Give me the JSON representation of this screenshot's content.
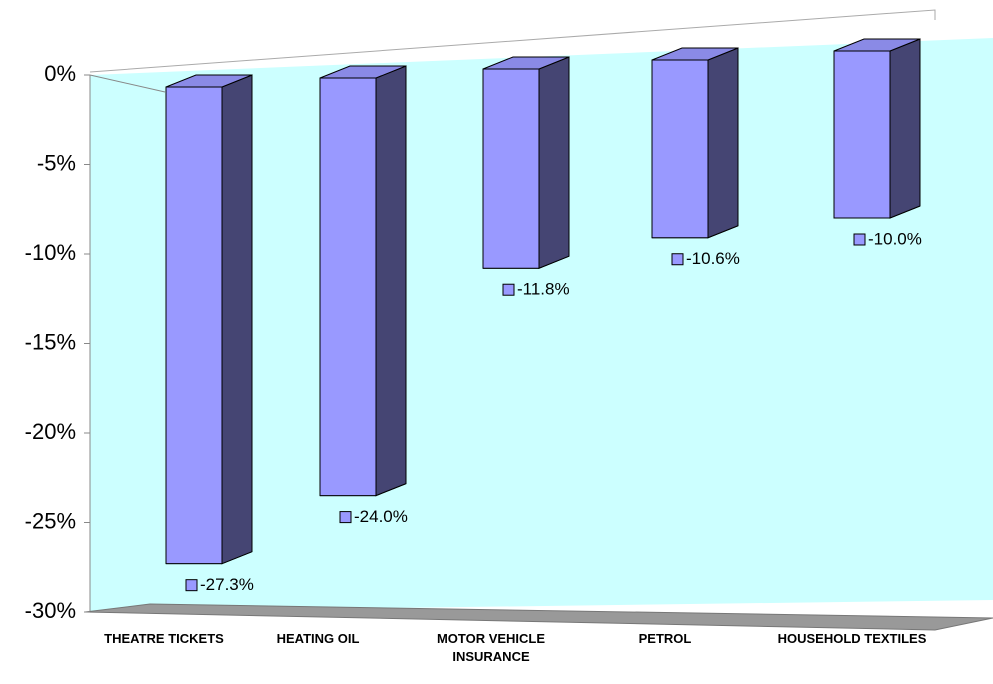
{
  "chart_data": {
    "type": "bar3d",
    "categories": [
      "THEATRE TICKETS",
      "HEATING OIL",
      "MOTOR VEHICLE INSURANCE",
      "PETROL",
      "HOUSEHOLD TEXTILES"
    ],
    "values": [
      -27.3,
      -24.0,
      -11.8,
      -10.6,
      -10.0
    ],
    "value_labels": [
      "-27.3%",
      "-24.0%",
      "-11.8%",
      "-10.6%",
      "-10.0%"
    ],
    "color": "#9999ff",
    "ylim": [
      -30,
      0
    ],
    "yticks": [
      {
        "value": 0,
        "label": "0%"
      },
      {
        "value": -5,
        "label": "-5%"
      },
      {
        "value": -10,
        "label": "-10%"
      },
      {
        "value": -15,
        "label": "-15%"
      },
      {
        "value": -20,
        "label": "-20%"
      },
      {
        "value": -25,
        "label": "-25%"
      },
      {
        "value": -30,
        "label": "-30%"
      }
    ]
  }
}
